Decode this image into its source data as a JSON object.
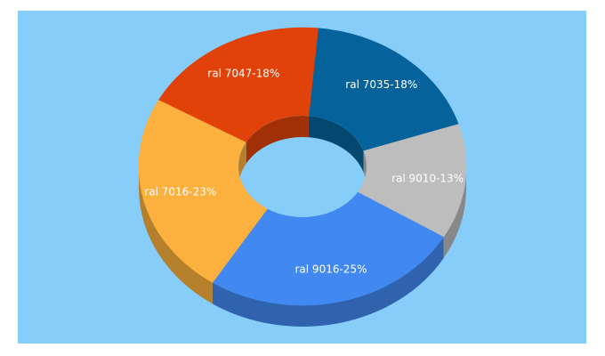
{
  "colors": {
    "background": "#87cdfa"
  },
  "chart_data": {
    "type": "pie",
    "variant": "3d-donut",
    "slices": [
      {
        "label": "ral 7035-18%",
        "value": 18,
        "color": "#06629a"
      },
      {
        "label": "ral 9010-13%",
        "value": 13,
        "color": "#bdbdbd"
      },
      {
        "label": "ral 9016-25%",
        "value": 25,
        "color": "#4189f1"
      },
      {
        "label": "ral 7016-23%",
        "value": 23,
        "color": "#fcb03d"
      },
      {
        "label": "ral 7047-18%",
        "value": 18,
        "color": "#e04209"
      }
    ]
  }
}
